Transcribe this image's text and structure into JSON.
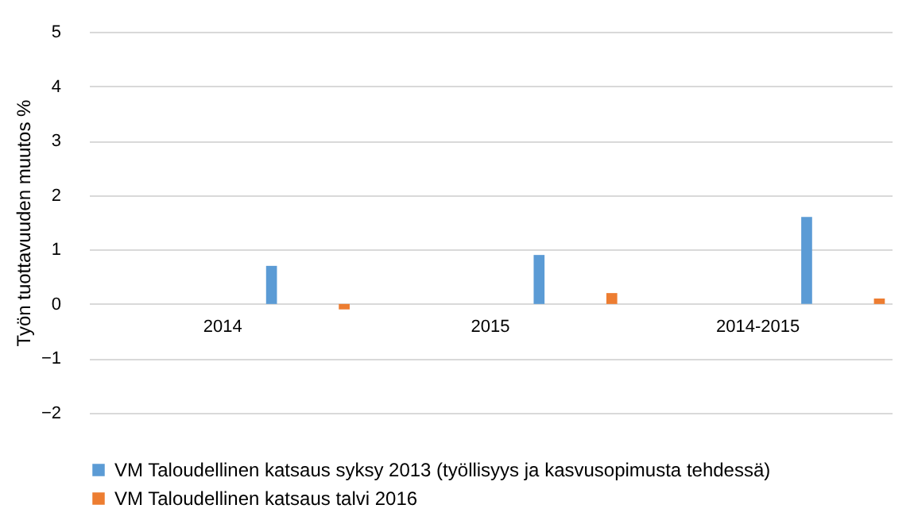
{
  "chart_data": {
    "type": "bar",
    "ylabel": "Työn tuottavuuden muutos %",
    "categories": [
      "2014",
      "2015",
      "2014-2015"
    ],
    "series": [
      {
        "name": "VM Taloudellinen katsaus syksy 2013 (työllisyys ja kasvusopimusta tehdessä)",
        "color": "#5b9bd5",
        "values": [
          0.7,
          0.9,
          1.6
        ]
      },
      {
        "name": "VM Taloudellinen katsaus talvi 2016",
        "color": "#ed7d31",
        "values": [
          -0.1,
          0.2,
          0.1
        ]
      }
    ],
    "ylim": [
      -2,
      5
    ],
    "yticks": [
      -2,
      -1,
      0,
      1,
      2,
      3,
      4,
      5
    ],
    "grid": "y",
    "legend": "bottom"
  }
}
